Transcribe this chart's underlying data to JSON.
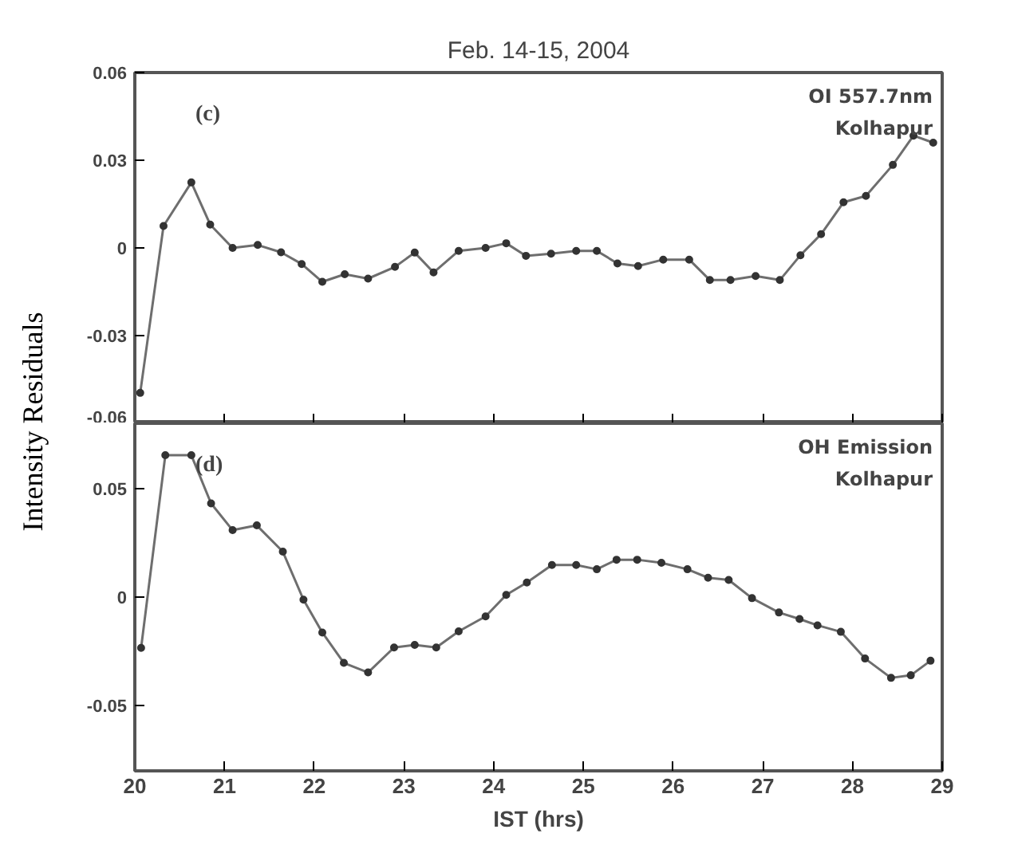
{
  "chart_data": [
    {
      "type": "line",
      "title": "Feb. 14-15, 2004",
      "ylabel": "Intensity Residuals",
      "annotations": [
        "(c)",
        "OI 557.7nm",
        "Kolhapur"
      ],
      "marker": "circle",
      "grid": false,
      "tick_labels": "y",
      "xlim": [
        20,
        29
      ],
      "xticks": [
        20,
        21,
        22,
        23,
        24,
        25,
        26,
        27,
        28,
        29
      ],
      "ylim": [
        -0.06,
        0.06
      ],
      "yticks": [
        -0.06,
        -0.03,
        0,
        0.03,
        0.06
      ],
      "series": [
        {
          "color": "#6e6e6e",
          "x": [
            20.06,
            20.32,
            20.63,
            20.84,
            21.09,
            21.37,
            21.63,
            21.86,
            22.09,
            22.34,
            22.6,
            22.9,
            23.12,
            23.33,
            23.61,
            23.91,
            24.14,
            24.36,
            24.64,
            24.92,
            25.15,
            25.38,
            25.61,
            25.89,
            26.18,
            26.41,
            26.64,
            26.92,
            27.19,
            27.42,
            27.65,
            27.9,
            28.15,
            28.45,
            28.68,
            28.9
          ],
          "values": [
            -0.0496,
            0.0075,
            0.0224,
            0.008,
            0.0,
            0.001,
            -0.0015,
            -0.0055,
            -0.0116,
            -0.009,
            -0.0105,
            -0.0065,
            -0.0016,
            -0.0084,
            -0.001,
            0.0,
            0.0016,
            -0.0027,
            -0.002,
            -0.001,
            -0.001,
            -0.0053,
            -0.0062,
            -0.004,
            -0.004,
            -0.011,
            -0.011,
            -0.0096,
            -0.011,
            -0.0025,
            0.0047,
            0.0156,
            0.0178,
            0.0284,
            0.0384,
            0.036
          ]
        }
      ]
    },
    {
      "type": "line",
      "xlabel": "IST (hrs)",
      "annotations": [
        "(d)",
        "OH Emission",
        "Kolhapur"
      ],
      "marker": "circle",
      "grid": false,
      "xlim": [
        20,
        29
      ],
      "xticks": [
        20,
        21,
        22,
        23,
        24,
        25,
        26,
        27,
        28,
        29
      ],
      "ylim": [
        -0.08,
        0.08
      ],
      "yticks": [
        -0.05,
        0,
        0.05
      ],
      "series": [
        {
          "color": "#6e6e6e",
          "x": [
            20.07,
            20.34,
            20.63,
            20.85,
            21.09,
            21.36,
            21.65,
            21.88,
            22.09,
            22.33,
            22.6,
            22.89,
            23.12,
            23.36,
            23.61,
            23.91,
            24.14,
            24.37,
            24.65,
            24.92,
            25.15,
            25.37,
            25.6,
            25.87,
            26.16,
            26.39,
            26.62,
            26.88,
            27.18,
            27.41,
            27.61,
            27.87,
            28.14,
            28.43,
            28.65,
            28.87
          ],
          "values": [
            -0.0234,
            0.0653,
            0.0653,
            0.0431,
            0.0308,
            0.033,
            0.0209,
            -0.0012,
            -0.0163,
            -0.0303,
            -0.0347,
            -0.0232,
            -0.022,
            -0.0232,
            -0.0158,
            -0.0089,
            0.001,
            0.0067,
            0.0148,
            0.0148,
            0.0128,
            0.0172,
            0.0172,
            0.0158,
            0.0128,
            0.0089,
            0.0079,
            -0.0005,
            -0.0071,
            -0.0101,
            -0.013,
            -0.016,
            -0.0283,
            -0.0372,
            -0.036,
            -0.0293
          ]
        }
      ]
    }
  ]
}
